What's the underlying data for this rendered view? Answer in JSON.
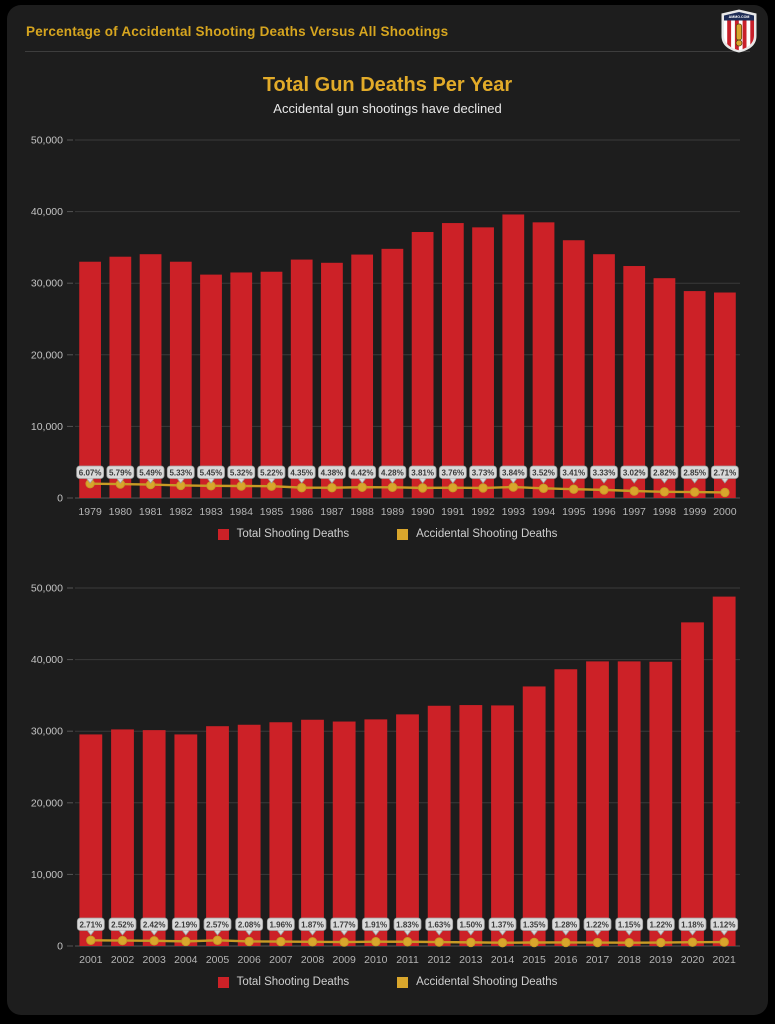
{
  "header": {
    "title": "Percentage of Accidental Shooting Deaths Versus All Shootings",
    "logo_text": "AMMO.COM"
  },
  "main": {
    "title": "Total Gun Deaths Per Year",
    "subtitle": "Accidental gun shootings have declined"
  },
  "legend": {
    "total": "Total Shooting Deaths",
    "accidental": "Accidental Shooting Deaths"
  },
  "colors": {
    "bar": "#cc2127",
    "line": "#c89b25",
    "marker": "#d9a62c",
    "grid": "#3a3a3a",
    "axis_line": "#555555",
    "axis_text": "#c4c4c4",
    "x_text": "#b5b5b5",
    "chip_bg": "#d9d9d9",
    "chip_border": "#a0a0a0",
    "chip_text": "#3a3a3a",
    "title_gold": "#e2ab29",
    "header_gold": "#d6a51f",
    "card_bg": "#1d1d1d"
  },
  "chart_data": [
    {
      "type": "bar",
      "title": "Total Gun Deaths Per Year 1979-2000",
      "categories": [
        "1979",
        "1980",
        "1981",
        "1982",
        "1983",
        "1984",
        "1985",
        "1986",
        "1987",
        "1988",
        "1989",
        "1990",
        "1991",
        "1992",
        "1993",
        "1994",
        "1995",
        "1996",
        "1997",
        "1998",
        "1999",
        "2000"
      ],
      "series": [
        {
          "name": "Total Shooting Deaths",
          "type": "bar",
          "values": [
            33000,
            33700,
            34050,
            33000,
            31200,
            31500,
            31600,
            33300,
            32850,
            34000,
            34800,
            37150,
            38400,
            37800,
            39600,
            38500,
            36000,
            34050,
            32400,
            30700,
            28900,
            28700
          ]
        },
        {
          "name": "Accidental Shooting Deaths",
          "type": "line",
          "values": [
            2003,
            1951,
            1870,
            1759,
            1700,
            1676,
            1650,
            1449,
            1439,
            1503,
            1489,
            1415,
            1444,
            1410,
            1521,
            1355,
            1228,
            1134,
            978,
            866,
            824,
            778
          ]
        }
      ],
      "point_labels": [
        "6.07%",
        "5.79%",
        "5.49%",
        "5.33%",
        "5.45%",
        "5.32%",
        "5.22%",
        "4.35%",
        "4.38%",
        "4.42%",
        "4.28%",
        "3.81%",
        "3.76%",
        "3.73%",
        "3.84%",
        "3.52%",
        "3.41%",
        "3.33%",
        "3.02%",
        "2.82%",
        "2.85%",
        "2.71%"
      ],
      "ylim": [
        0,
        50000
      ],
      "yticks": [
        "50,000",
        "40,000",
        "30,000",
        "20,000",
        "10,000",
        "0"
      ],
      "grid": true,
      "legend_position": "bottom"
    },
    {
      "type": "bar",
      "title": "Total Gun Deaths Per Year 2001-2021",
      "categories": [
        "2001",
        "2002",
        "2003",
        "2004",
        "2005",
        "2006",
        "2007",
        "2008",
        "2009",
        "2010",
        "2011",
        "2012",
        "2013",
        "2014",
        "2015",
        "2016",
        "2017",
        "2018",
        "2019",
        "2020",
        "2021"
      ],
      "series": [
        {
          "name": "Total Shooting Deaths",
          "type": "bar",
          "values": [
            29550,
            30250,
            30150,
            29550,
            30700,
            30900,
            31250,
            31600,
            31350,
            31650,
            32350,
            33550,
            33650,
            33600,
            36250,
            38650,
            39750,
            39750,
            39700,
            45200,
            48800
          ]
        },
        {
          "name": "Accidental Shooting Deaths",
          "type": "line",
          "values": [
            801,
            762,
            730,
            647,
            789,
            643,
            613,
            591,
            555,
            605,
            592,
            547,
            505,
            460,
            489,
            495,
            485,
            457,
            484,
            533,
            547
          ]
        }
      ],
      "point_labels": [
        "2.71%",
        "2.52%",
        "2.42%",
        "2.19%",
        "2.57%",
        "2.08%",
        "1.96%",
        "1.87%",
        "1.77%",
        "1.91%",
        "1.83%",
        "1.63%",
        "1.50%",
        "1.37%",
        "1.35%",
        "1.28%",
        "1.22%",
        "1.15%",
        "1.22%",
        "1.18%",
        "1.12%"
      ],
      "ylim": [
        0,
        50000
      ],
      "yticks": [
        "50,000",
        "40,000",
        "30,000",
        "20,000",
        "10,000",
        "0"
      ],
      "grid": true,
      "legend_position": "bottom"
    }
  ]
}
